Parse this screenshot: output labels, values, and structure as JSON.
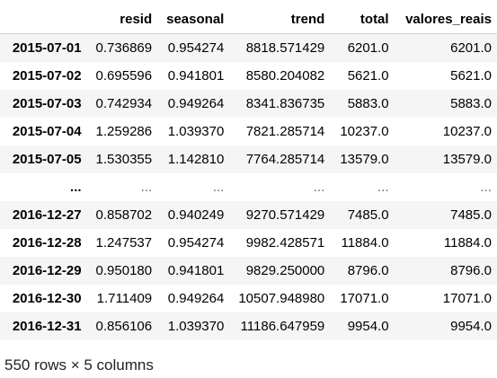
{
  "dataframe": {
    "index_header": "",
    "columns": [
      "resid",
      "seasonal",
      "trend",
      "total",
      "valores_reais"
    ],
    "rows": [
      {
        "index": "2015-07-01",
        "values": [
          "0.736869",
          "0.954274",
          "8818.571429",
          "6201.0",
          "6201.0"
        ]
      },
      {
        "index": "2015-07-02",
        "values": [
          "0.695596",
          "0.941801",
          "8580.204082",
          "5621.0",
          "5621.0"
        ]
      },
      {
        "index": "2015-07-03",
        "values": [
          "0.742934",
          "0.949264",
          "8341.836735",
          "5883.0",
          "5883.0"
        ]
      },
      {
        "index": "2015-07-04",
        "values": [
          "1.259286",
          "1.039370",
          "7821.285714",
          "10237.0",
          "10237.0"
        ]
      },
      {
        "index": "2015-07-05",
        "values": [
          "1.530355",
          "1.142810",
          "7764.285714",
          "13579.0",
          "13579.0"
        ]
      },
      {
        "index": "...",
        "values": [
          "...",
          "...",
          "...",
          "...",
          "..."
        ]
      },
      {
        "index": "2016-12-27",
        "values": [
          "0.858702",
          "0.940249",
          "9270.571429",
          "7485.0",
          "7485.0"
        ]
      },
      {
        "index": "2016-12-28",
        "values": [
          "1.247537",
          "0.954274",
          "9982.428571",
          "11884.0",
          "11884.0"
        ]
      },
      {
        "index": "2016-12-29",
        "values": [
          "0.950180",
          "0.941801",
          "9829.250000",
          "8796.0",
          "8796.0"
        ]
      },
      {
        "index": "2016-12-30",
        "values": [
          "1.711409",
          "0.949264",
          "10507.948980",
          "17071.0",
          "17071.0"
        ]
      },
      {
        "index": "2016-12-31",
        "values": [
          "0.856106",
          "1.039370",
          "11186.647959",
          "9954.0",
          "9954.0"
        ]
      }
    ],
    "shape_text": "550 rows × 5 columns"
  },
  "colors": {
    "stripe": "#f5f5f5",
    "header_border": "#d0d0d0",
    "ellipsis_text": "#666666"
  }
}
